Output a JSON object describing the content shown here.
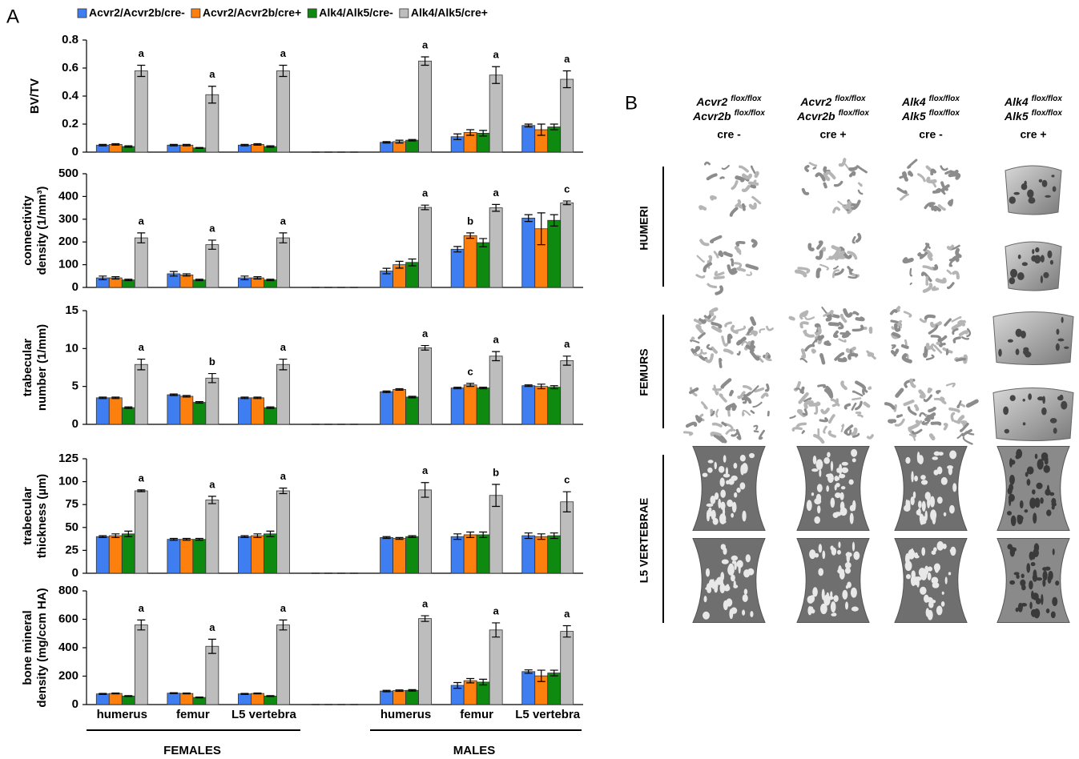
{
  "panel_a": "A",
  "panel_b": "B",
  "groups": [
    "FEMALES",
    "MALES"
  ],
  "chart_data": [
    {
      "type": "bar",
      "ylabel": [
        "BV/TV"
      ],
      "ylim": [
        0,
        0.8
      ],
      "yticks": [
        0,
        0.2,
        0.4,
        0.6,
        0.8
      ],
      "series": [
        {
          "name": "Acvr2/Acvr2b/cre-",
          "color": "#3f7ef0",
          "values": [
            0.05,
            0.05,
            0.05,
            0,
            0.07,
            0.11,
            0.19
          ],
          "errors": [
            0.005,
            0.005,
            0.005,
            0,
            0.005,
            0.02,
            0.01
          ]
        },
        {
          "name": "Acvr2/Acvr2b/cre+",
          "color": "#fd7f0e",
          "values": [
            0.055,
            0.05,
            0.055,
            0,
            0.075,
            0.14,
            0.16
          ],
          "errors": [
            0.005,
            0.005,
            0.005,
            0,
            0.01,
            0.02,
            0.04
          ]
        },
        {
          "name": "Alk4/Alk5/cre-",
          "color": "#0f8a10",
          "values": [
            0.04,
            0.03,
            0.04,
            0,
            0.085,
            0.135,
            0.18
          ],
          "errors": [
            0.005,
            0.003,
            0.005,
            0,
            0.005,
            0.02,
            0.02
          ]
        },
        {
          "name": "Alk4/Alk5/cre+",
          "color": "#bdbdbd",
          "values": [
            0.58,
            0.41,
            0.58,
            0,
            0.65,
            0.55,
            0.52
          ],
          "errors": [
            0.04,
            0.06,
            0.04,
            0,
            0.03,
            0.06,
            0.06
          ],
          "annotations": [
            "a",
            "a",
            "a",
            null,
            "a",
            "a",
            "a"
          ]
        }
      ]
    },
    {
      "type": "bar",
      "ylabel": [
        "connectivity",
        "density (1/mm³)"
      ],
      "ylim": [
        0,
        500
      ],
      "yticks": [
        0,
        100,
        200,
        300,
        400,
        500
      ],
      "series": [
        {
          "color": "#3f7ef0",
          "values": [
            42,
            60,
            42,
            0,
            72,
            168,
            305
          ],
          "errors": [
            8,
            10,
            8,
            0,
            12,
            12,
            15
          ]
        },
        {
          "color": "#fd7f0e",
          "values": [
            42,
            55,
            42,
            0,
            100,
            228,
            258
          ],
          "errors": [
            5,
            5,
            5,
            0,
            15,
            12,
            70
          ],
          "annotations": [
            null,
            null,
            null,
            null,
            null,
            "b",
            null
          ]
        },
        {
          "color": "#0f8a10",
          "values": [
            33,
            33,
            33,
            0,
            110,
            197,
            295
          ],
          "errors": [
            3,
            3,
            3,
            0,
            15,
            18,
            25
          ]
        },
        {
          "color": "#bdbdbd",
          "values": [
            218,
            188,
            218,
            0,
            352,
            350,
            372
          ],
          "errors": [
            22,
            20,
            22,
            0,
            10,
            15,
            8
          ],
          "annotations": [
            "a",
            "a",
            "a",
            null,
            "a",
            "a",
            "c"
          ]
        }
      ]
    },
    {
      "type": "bar",
      "ylabel": [
        "trabecular",
        "number (1/mm)"
      ],
      "ylim": [
        0,
        15
      ],
      "yticks": [
        0,
        5,
        10,
        15
      ],
      "series": [
        {
          "color": "#3f7ef0",
          "values": [
            3.5,
            3.9,
            3.5,
            0,
            4.3,
            4.8,
            5.1
          ],
          "errors": [
            0.1,
            0.1,
            0.1,
            0,
            0.1,
            0.1,
            0.1
          ]
        },
        {
          "color": "#fd7f0e",
          "values": [
            3.5,
            3.7,
            3.5,
            0,
            4.6,
            5.2,
            5.0
          ],
          "errors": [
            0.1,
            0.1,
            0.1,
            0,
            0.1,
            0.2,
            0.3
          ],
          "annotations": [
            null,
            null,
            null,
            null,
            null,
            "c",
            null
          ]
        },
        {
          "color": "#0f8a10",
          "values": [
            2.2,
            2.9,
            2.2,
            0,
            3.6,
            4.8,
            4.9
          ],
          "errors": [
            0.1,
            0.1,
            0.1,
            0,
            0.1,
            0.1,
            0.2
          ]
        },
        {
          "color": "#bdbdbd",
          "values": [
            7.9,
            6.1,
            7.9,
            0,
            10.1,
            9.0,
            8.4
          ],
          "errors": [
            0.7,
            0.6,
            0.7,
            0,
            0.3,
            0.6,
            0.6
          ],
          "annotations": [
            "a",
            "b",
            "a",
            null,
            "a",
            "a",
            "a"
          ]
        }
      ]
    },
    {
      "type": "bar",
      "ylabel": [
        "trabecular",
        "thickness (µm)"
      ],
      "ylim": [
        0,
        125
      ],
      "yticks": [
        0,
        25,
        50,
        75,
        100,
        125
      ],
      "series": [
        {
          "color": "#3f7ef0",
          "values": [
            40,
            37,
            40,
            0,
            39,
            40,
            41
          ],
          "errors": [
            1,
            1,
            1,
            0,
            1,
            3,
            3
          ]
        },
        {
          "color": "#fd7f0e",
          "values": [
            41,
            37,
            41,
            0,
            38,
            42,
            40
          ],
          "errors": [
            2,
            1,
            2,
            0,
            1,
            3,
            3
          ]
        },
        {
          "color": "#0f8a10",
          "values": [
            43,
            37,
            43,
            0,
            40,
            42,
            41
          ],
          "errors": [
            3,
            1,
            3,
            0,
            1,
            3,
            3
          ]
        },
        {
          "color": "#bdbdbd",
          "values": [
            90,
            80,
            90,
            0,
            91,
            85,
            78
          ],
          "errors": [
            1,
            4,
            3,
            0,
            8,
            12,
            11
          ],
          "annotations": [
            "a",
            "a",
            "a",
            null,
            "a",
            "b",
            "c"
          ]
        }
      ]
    },
    {
      "type": "bar",
      "ylabel": [
        "bone mineral",
        "density (mg/ccm HA)"
      ],
      "ylim": [
        0,
        800
      ],
      "yticks": [
        0,
        200,
        400,
        600,
        800
      ],
      "categories": [
        "humerus",
        "femur",
        "L5 vertebra",
        null,
        "humerus",
        "femur",
        "L5 vertebra"
      ],
      "series": [
        {
          "color": "#3f7ef0",
          "values": [
            75,
            80,
            75,
            0,
            95,
            135,
            232
          ],
          "errors": [
            3,
            3,
            3,
            0,
            5,
            20,
            12
          ]
        },
        {
          "color": "#fd7f0e",
          "values": [
            78,
            78,
            78,
            0,
            98,
            168,
            202
          ],
          "errors": [
            3,
            3,
            3,
            0,
            5,
            15,
            40
          ]
        },
        {
          "color": "#0f8a10",
          "values": [
            60,
            50,
            60,
            0,
            100,
            158,
            222
          ],
          "errors": [
            3,
            3,
            3,
            0,
            5,
            20,
            20
          ]
        },
        {
          "color": "#bdbdbd",
          "values": [
            560,
            410,
            560,
            0,
            605,
            525,
            515
          ],
          "errors": [
            35,
            50,
            35,
            0,
            20,
            50,
            40
          ],
          "annotations": [
            "a",
            "a",
            "a",
            null,
            "a",
            "a",
            "a"
          ]
        }
      ]
    }
  ],
  "columns": [
    {
      "genes": [
        {
          "gene": "Acvr2",
          "sup": "flox/flox"
        },
        {
          "gene": "Acvr2b",
          "sup": "flox/flox"
        }
      ],
      "cre": "cre -"
    },
    {
      "genes": [
        {
          "gene": "Acvr2",
          "sup": "flox/flox"
        },
        {
          "gene": "Acvr2b",
          "sup": "flox/flox"
        }
      ],
      "cre": "cre +"
    },
    {
      "genes": [
        {
          "gene": "Alk4",
          "sup": "flox/flox"
        },
        {
          "gene": "Alk5",
          "sup": "flox/flox"
        }
      ],
      "cre": "cre -"
    },
    {
      "genes": [
        {
          "gene": "Alk4",
          "sup": "flox/flox"
        },
        {
          "gene": "Alk5",
          "sup": "flox/flox"
        }
      ],
      "cre": "cre +"
    }
  ],
  "rows": [
    "HUMERI",
    "FEMURS",
    "L5 VERTEBRAE"
  ]
}
